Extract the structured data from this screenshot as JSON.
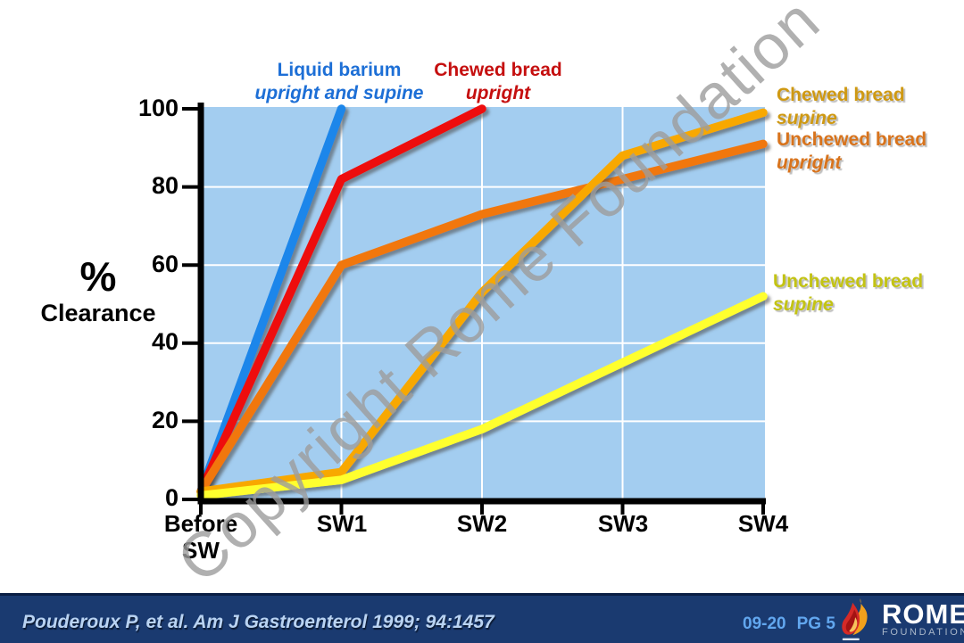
{
  "watermark": {
    "text": "Copyright Rome Foundation"
  },
  "y_axis": {
    "label_percent": "%",
    "label_clearance": "Clearance",
    "ticks": [
      "100",
      "80",
      "60",
      "40",
      "20",
      "0"
    ]
  },
  "x_axis": {
    "tick0_line1": "Before",
    "tick0_line2": "SW",
    "tick1": "SW1",
    "tick2": "SW2",
    "tick3": "SW3",
    "tick4": "SW4"
  },
  "annotations": [
    {
      "name": "Liquid barium",
      "style": "upright and supine",
      "color": "#1d6fd6"
    },
    {
      "name": "Chewed bread",
      "style": "upright",
      "color": "#c50f0f"
    },
    {
      "name": "Chewed bread",
      "style": "supine",
      "color": "#cf9913"
    },
    {
      "name": "Unchewed bread",
      "style": "upright",
      "color": "#d8731c"
    },
    {
      "name": "Unchewed bread",
      "style": "supine",
      "color": "#c3c314"
    }
  ],
  "chart_data": {
    "type": "line",
    "categories": [
      "Before SW",
      "SW1",
      "SW2",
      "SW3",
      "SW4"
    ],
    "xlabel": "",
    "ylabel": "% Clearance",
    "ylim": [
      0,
      100
    ],
    "grid": true,
    "legend_position": "around-plot",
    "plot_bg": "#a3cdf0",
    "gridline_color": "#ffffff",
    "series": [
      {
        "name": "Liquid barium (upright and supine)",
        "color": "#1e86ea",
        "x": [
          0,
          1
        ],
        "values": [
          2,
          100
        ]
      },
      {
        "name": "Chewed bread (upright)",
        "color": "#ee1010",
        "x": [
          0,
          1,
          2
        ],
        "values": [
          2,
          82,
          100
        ]
      },
      {
        "name": "Unchewed bread (upright)",
        "color": "#f1770e",
        "x": [
          0,
          1,
          2,
          3,
          4
        ],
        "values": [
          2,
          60,
          73,
          82,
          91
        ]
      },
      {
        "name": "Chewed bread (supine)",
        "color": "#f8a801",
        "x": [
          0,
          1,
          2,
          3,
          4
        ],
        "values": [
          2,
          7,
          53,
          88,
          99
        ]
      },
      {
        "name": "Unchewed bread (supine)",
        "color": "#ffff2e",
        "x": [
          0,
          1,
          2,
          3,
          4
        ],
        "values": [
          1,
          5,
          18,
          35,
          52
        ]
      }
    ]
  },
  "footer": {
    "citation": "Pouderoux P, et al. Am J Gastroenterol 1999; 94:1457",
    "code": "09-20",
    "page": "PG 5",
    "logo_name": "ROME",
    "logo_sub": "FOUNDATION"
  }
}
